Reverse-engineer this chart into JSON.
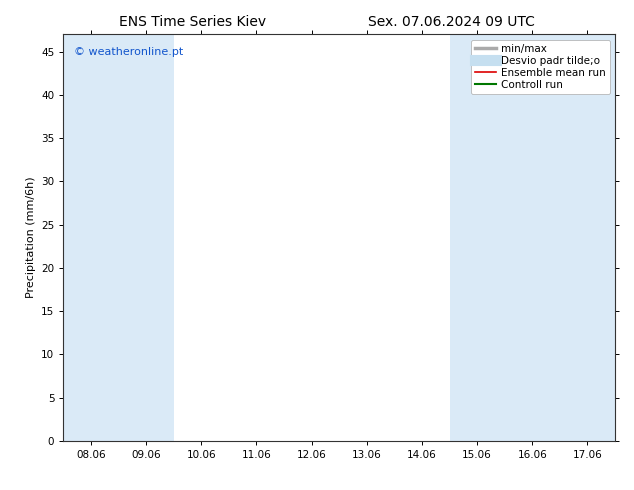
{
  "title_left": "ENS Time Series Kiev",
  "title_right": "Sex. 07.06.2024 09 UTC",
  "ylabel": "Precipitation (mm/6h)",
  "watermark": "© weatheronline.pt",
  "watermark_color": "#1155cc",
  "ylim": [
    0,
    47
  ],
  "yticks": [
    0,
    5,
    10,
    15,
    20,
    25,
    30,
    35,
    40,
    45
  ],
  "xtick_labels": [
    "08.06",
    "09.06",
    "10.06",
    "11.06",
    "12.06",
    "13.06",
    "14.06",
    "15.06",
    "16.06",
    "17.06"
  ],
  "n_xticks": 10,
  "background_color": "#ffffff",
  "plot_bg_color": "#ffffff",
  "band_color": "#daeaf7",
  "shaded_bands": [
    {
      "xmin": 0,
      "xmax": 1
    },
    {
      "xmin": 1,
      "xmax": 2
    },
    {
      "xmin": 7,
      "xmax": 8
    },
    {
      "xmin": 8,
      "xmax": 9
    },
    {
      "xmin": 9,
      "xmax": 10
    }
  ],
  "legend_entries": [
    {
      "label": "min/max",
      "color": "#aaaaaa",
      "lw": 2.5,
      "style": "solid"
    },
    {
      "label": "Desvio padr tilde;o",
      "color": "#c5dff0",
      "lw": 8,
      "style": "solid"
    },
    {
      "label": "Ensemble mean run",
      "color": "#dd0000",
      "lw": 1.2,
      "style": "solid"
    },
    {
      "label": "Controll run",
      "color": "#007700",
      "lw": 1.5,
      "style": "solid"
    }
  ],
  "title_fontsize": 10,
  "tick_fontsize": 7.5,
  "ylabel_fontsize": 8,
  "watermark_fontsize": 8,
  "legend_fontsize": 7.5
}
